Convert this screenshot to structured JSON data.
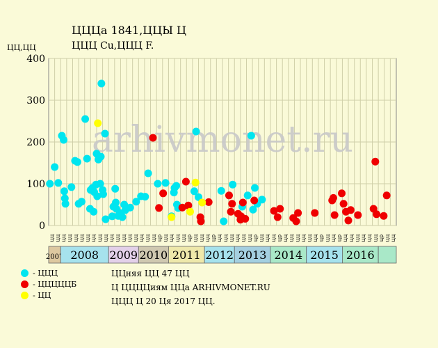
{
  "header": {
    "title": "ЦЦЦа 1841,ЦЦЫ Ц",
    "subtitle": "ЦЦЦ Cu,ЦЦЦ F.",
    "y_unit": "ЦЦ,ЦЦ"
  },
  "watermark": "arhivmonet.ru",
  "colors": {
    "cyan": "#00e5ef",
    "red": "#ef0000",
    "yellow": "#ffff00",
    "grid": "#cfcfa8",
    "plot_bg": "#fafad8"
  },
  "chart_data": {
    "type": "scatter",
    "ylim": [
      0,
      400
    ],
    "yticks": [
      0,
      100,
      200,
      300,
      400
    ],
    "x_count": 58,
    "x_tick_labels": [
      "цц",
      "цц",
      "цц",
      "цц",
      "цц",
      "цц",
      "цц",
      "цц",
      "цц",
      "цц",
      "цц",
      "цц",
      "цц",
      "цц",
      "цц",
      "цц",
      "цц",
      "цц",
      "цр",
      "цц",
      "цц",
      "цц",
      "цц",
      "цр",
      "цц",
      "цц",
      "цц",
      "цр",
      "цц",
      "цц",
      "цц",
      "цц",
      "цц",
      "цц",
      "цр",
      "цц",
      "цц",
      "цц",
      "цр",
      "цц",
      "цц",
      "цц",
      "цц",
      "цц",
      "цц",
      "цр",
      "цц",
      "цц",
      "цр",
      "цц",
      "цц",
      "цц",
      "цц",
      "цц",
      "цц",
      "цр",
      "цц",
      "цц"
    ],
    "years": [
      {
        "label": "2007",
        "start": 0,
        "end": 2,
        "color": "#ddc8a0",
        "small": true
      },
      {
        "label": "2008",
        "start": 2,
        "end": 10,
        "color": "#a6e2ed"
      },
      {
        "label": "2009",
        "start": 10,
        "end": 15,
        "color": "#e3d0e9"
      },
      {
        "label": "2010",
        "start": 15,
        "end": 20,
        "color": "#cfc8b0"
      },
      {
        "label": "2011",
        "start": 20,
        "end": 26,
        "color": "#eee8aa"
      },
      {
        "label": "2012",
        "start": 26,
        "end": 31,
        "color": "#a6e2ed"
      },
      {
        "label": "2013",
        "start": 31,
        "end": 37,
        "color": "#a4cfe0"
      },
      {
        "label": "2014",
        "start": 37,
        "end": 43,
        "color": "#a9e8c8"
      },
      {
        "label": "2015",
        "start": 43,
        "end": 49,
        "color": "#a6e2ed"
      },
      {
        "label": "2016",
        "start": 49,
        "end": 55,
        "color": "#a9e8c8"
      },
      {
        "label": "",
        "start": 55,
        "end": 58,
        "color": "#a9e8c8"
      }
    ],
    "series": [
      {
        "name": "ЦЦЦ",
        "color": "#00e5ef",
        "points": [
          [
            0.2,
            100
          ],
          [
            1.0,
            140
          ],
          [
            1.6,
            102
          ],
          [
            2.2,
            215
          ],
          [
            2.5,
            205
          ],
          [
            2.6,
            82
          ],
          [
            2.7,
            65
          ],
          [
            2.8,
            52
          ],
          [
            3.8,
            92
          ],
          [
            4.4,
            155
          ],
          [
            4.8,
            152
          ],
          [
            5.0,
            52
          ],
          [
            5.5,
            57
          ],
          [
            6.1,
            255
          ],
          [
            6.4,
            160
          ],
          [
            6.9,
            40
          ],
          [
            7.0,
            85
          ],
          [
            7.3,
            90
          ],
          [
            7.5,
            33
          ],
          [
            7.6,
            80
          ],
          [
            7.9,
            98
          ],
          [
            8.0,
            172
          ],
          [
            8.1,
            70
          ],
          [
            8.3,
            158
          ],
          [
            8.6,
            100
          ],
          [
            8.7,
            165
          ],
          [
            8.8,
            340
          ],
          [
            9.0,
            85
          ],
          [
            9.1,
            75
          ],
          [
            9.4,
            220
          ],
          [
            9.5,
            15
          ],
          [
            10.6,
            22
          ],
          [
            10.8,
            45
          ],
          [
            11.1,
            88
          ],
          [
            11.2,
            55
          ],
          [
            11.3,
            40
          ],
          [
            11.6,
            23
          ],
          [
            11.9,
            30
          ],
          [
            12.3,
            20
          ],
          [
            12.6,
            50
          ],
          [
            12.8,
            37
          ],
          [
            13.6,
            43
          ],
          [
            14.6,
            57
          ],
          [
            15.4,
            70
          ],
          [
            16.1,
            69
          ],
          [
            16.6,
            125
          ],
          [
            18.2,
            100
          ],
          [
            19.5,
            102
          ],
          [
            20.5,
            22
          ],
          [
            20.9,
            79
          ],
          [
            21.0,
            90
          ],
          [
            21.3,
            95
          ],
          [
            21.4,
            50
          ],
          [
            21.6,
            42
          ],
          [
            24.3,
            82
          ],
          [
            24.6,
            225
          ],
          [
            25.0,
            68
          ],
          [
            28.8,
            83
          ],
          [
            29.2,
            10
          ],
          [
            30.7,
            98
          ],
          [
            32.3,
            45
          ],
          [
            33.2,
            72
          ],
          [
            33.8,
            215
          ],
          [
            34.1,
            38
          ],
          [
            34.4,
            90
          ],
          [
            34.8,
            52
          ],
          [
            35.6,
            62
          ]
        ]
      },
      {
        "name": "ЦЦЦЦЦБ",
        "color": "#ef0000",
        "points": [
          [
            17.4,
            210
          ],
          [
            18.4,
            42
          ],
          [
            19.1,
            77
          ],
          [
            22.3,
            43
          ],
          [
            22.9,
            105
          ],
          [
            23.3,
            48
          ],
          [
            25.3,
            20
          ],
          [
            25.4,
            10
          ],
          [
            26.7,
            56
          ],
          [
            30.1,
            72
          ],
          [
            30.4,
            33
          ],
          [
            30.6,
            52
          ],
          [
            31.6,
            28
          ],
          [
            32.0,
            14
          ],
          [
            32.1,
            22
          ],
          [
            32.4,
            55
          ],
          [
            32.8,
            16
          ],
          [
            34.3,
            60
          ],
          [
            37.6,
            35
          ],
          [
            38.2,
            20
          ],
          [
            38.6,
            40
          ],
          [
            40.8,
            18
          ],
          [
            41.3,
            10
          ],
          [
            41.6,
            30
          ],
          [
            44.4,
            30
          ],
          [
            47.3,
            60
          ],
          [
            47.5,
            66
          ],
          [
            47.7,
            25
          ],
          [
            48.9,
            77
          ],
          [
            49.2,
            52
          ],
          [
            49.6,
            33
          ],
          [
            50.0,
            12
          ],
          [
            50.4,
            37
          ],
          [
            51.6,
            25
          ],
          [
            54.2,
            40
          ],
          [
            54.5,
            153
          ],
          [
            54.7,
            27
          ],
          [
            55.9,
            23
          ],
          [
            56.4,
            72
          ]
        ]
      },
      {
        "name": "ЦЦ",
        "color": "#ffff00",
        "points": [
          [
            8.2,
            245
          ],
          [
            20.5,
            20
          ],
          [
            24.5,
            103
          ],
          [
            23.6,
            33
          ],
          [
            25.6,
            55
          ]
        ]
      }
    ]
  },
  "legend": [
    {
      "label": "- ЦЦЦ",
      "color": "#00e5ef"
    },
    {
      "label": "- ЦЦЦЦЦБ",
      "color": "#ef0000"
    },
    {
      "label": "- ЦЦ",
      "color": "#ffff00"
    }
  ],
  "notes": [
    "ЦЦняя ЦЦ 47 ЦЦ",
    "Ц ЦЦЦЦиям ЦЦа ARHIVMONET.RU",
    "ЦЦЦ Ц 20 Ця 2017 ЦЦ."
  ]
}
